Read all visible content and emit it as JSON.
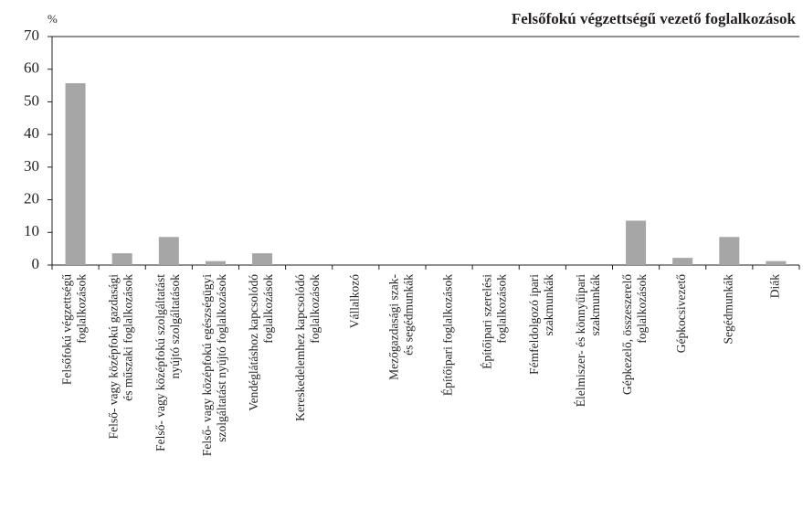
{
  "chart_data": {
    "type": "bar",
    "title": "Felsőfokú végzettségű vezető foglalkozások",
    "y_label": "%",
    "categories": [
      "Felsőfokú végzettségű\nfoglalkozások",
      "Felső- vagy középfokú gazdasági\nés műszaki foglalkozások",
      "Felső- vagy középfokú szolgáltatást\nnyújtó szolgáltatások",
      "Felső- vagy középfokú egészségügyi\nszolgáltatást nyújtó foglalkozások",
      "Vendéglátáshoz kapcsolódó\nfoglalkozások",
      "Kereskedelemhez kapcsolódó\nfoglalkozások",
      "Vállalkozó",
      "Mezőgazdasági szak-\nés segédmunkák",
      "Építőipari foglalkozások",
      "Építőipari szerelési\nfoglalkozások",
      "Fémfeldolgozó ipari\nszakmunkák",
      "Élelmiszer- és könnyűipari\nszakmunkák",
      "Gépkezelő, összeszerelő\nfoglalkozások",
      "Gépkocsivezető",
      "Segédmunkák",
      "Diák"
    ],
    "values": [
      55.7,
      3.6,
      8.6,
      1.2,
      3.6,
      0,
      0,
      0,
      0,
      0,
      0,
      0,
      13.6,
      2.2,
      8.6,
      1.2
    ],
    "color": "#a6a6a6",
    "ylim": [
      0,
      70
    ],
    "yticks": [
      0,
      10,
      20,
      30,
      40,
      50,
      60,
      70
    ],
    "grid": false
  }
}
